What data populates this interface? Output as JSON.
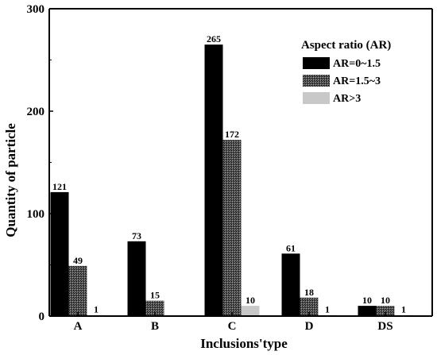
{
  "chart_data": {
    "type": "bar",
    "title": "",
    "xlabel": "Inclusions'type",
    "ylabel": "Quantity of particle",
    "ylim": [
      0,
      300
    ],
    "yticks": [
      0,
      100,
      200,
      300
    ],
    "categories": [
      "A",
      "B",
      "C",
      "D",
      "DS"
    ],
    "grid": false,
    "legend": {
      "title": "Aspect ratio (AR)",
      "placement": "top-right"
    },
    "series": [
      {
        "name": "AR=0~1.5",
        "values": [
          121,
          73,
          265,
          61,
          10
        ],
        "labels": [
          "121",
          "73",
          "265",
          "61",
          "10"
        ],
        "color": "#000000",
        "pattern": "solid"
      },
      {
        "name": "AR=1.5~3",
        "values": [
          49,
          15,
          172,
          18,
          10
        ],
        "labels": [
          "49",
          "15",
          "172",
          "18",
          "10"
        ],
        "color": "#3a3a3a",
        "pattern": "crosshatch"
      },
      {
        "name": "AR>3",
        "values": [
          1,
          0,
          10,
          1,
          1
        ],
        "labels": [
          "1",
          "",
          "10",
          "1",
          "1"
        ],
        "color": "#c8c8c8",
        "pattern": "solid"
      }
    ]
  }
}
